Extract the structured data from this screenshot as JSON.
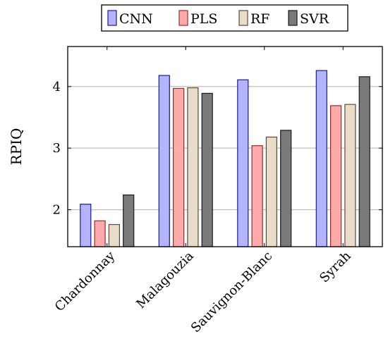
{
  "chart_data": {
    "type": "bar",
    "ylabel": "RPIQ",
    "xlabel": "",
    "categories": [
      "Chardonnay",
      "Malagouzia",
      "Sauvignon-Blanc",
      "Syrah"
    ],
    "series": [
      {
        "name": "CNN",
        "values": [
          2.09,
          4.18,
          4.11,
          4.26
        ],
        "color": "#b3b3ff",
        "stroke": "#1a1a99"
      },
      {
        "name": "PLS",
        "values": [
          1.82,
          3.97,
          3.04,
          3.69
        ],
        "color": "#ffaaaa",
        "stroke": "#992b2b"
      },
      {
        "name": "RF",
        "values": [
          1.76,
          3.98,
          3.18,
          3.71
        ],
        "color": "#e9dcc8",
        "stroke": "#5a4a3a"
      },
      {
        "name": "SVR",
        "values": [
          2.24,
          3.89,
          3.29,
          4.16
        ],
        "color": "#7a7a7a",
        "stroke": "#1a1a1a"
      }
    ],
    "ylim": [
      1.4,
      4.65
    ],
    "yticks": [
      2,
      3,
      4
    ],
    "grid": "horizontal",
    "legend_position": "top-center"
  }
}
